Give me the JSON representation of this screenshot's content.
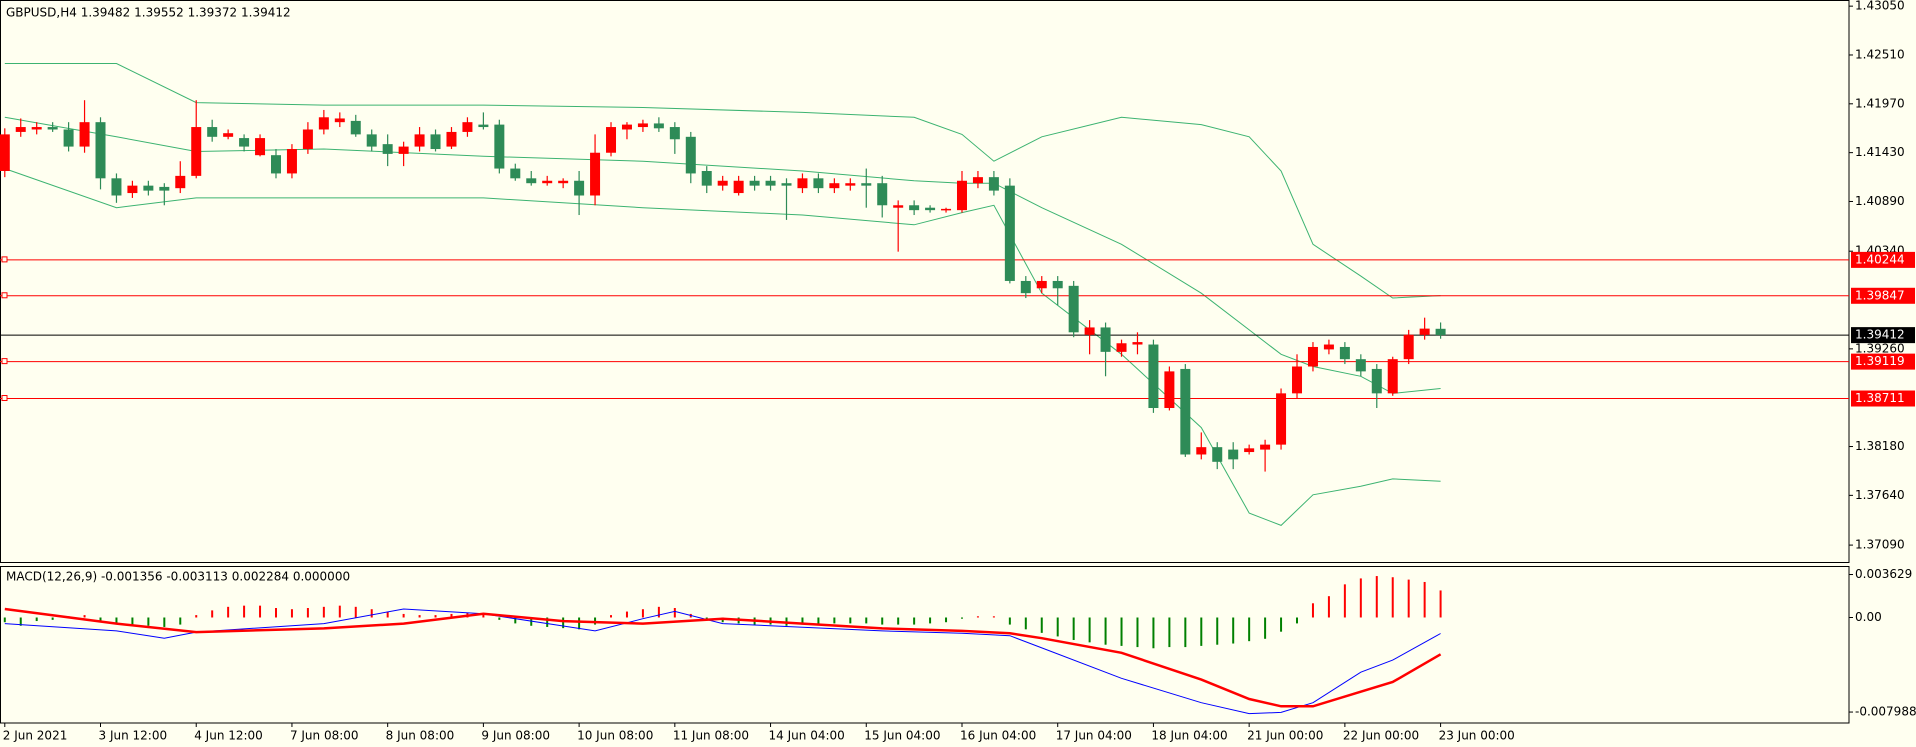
{
  "chart_data": [
    {
      "type": "candlestick",
      "title": "GBPUSD,H4  1.39482 1.39552 1.39372 1.39412",
      "up_color": "#ff0000",
      "down_color": "#2e8b57",
      "xlim": [
        -0.3,
        115.6
      ],
      "ylim": [
        1.36903,
        1.43118
      ],
      "yticks": [
        {
          "value": 1.4305,
          "label": "1.43050"
        },
        {
          "value": 1.4251,
          "label": "1.42510"
        },
        {
          "value": 1.4197,
          "label": "1.41970"
        },
        {
          "value": 1.4143,
          "label": "1.41430"
        },
        {
          "value": 1.4089,
          "label": "1.40890"
        },
        {
          "value": 1.4034,
          "label": "1.40340"
        },
        {
          "value": 1.3926,
          "label": "1.39260"
        },
        {
          "value": 1.3818,
          "label": "1.38180"
        },
        {
          "value": 1.3764,
          "label": "1.37640"
        },
        {
          "value": 1.3709,
          "label": "1.37090"
        }
      ],
      "xticks": [
        {
          "value": 0,
          "label": "2 Jun 2021"
        },
        {
          "value": 6,
          "label": "3 Jun 12:00"
        },
        {
          "value": 12,
          "label": "4 Jun 12:00"
        },
        {
          "value": 18,
          "label": "7 Jun 08:00"
        },
        {
          "value": 24,
          "label": "8 Jun 08:00"
        },
        {
          "value": 30,
          "label": "9 Jun 08:00"
        },
        {
          "value": 36,
          "label": "10 Jun 08:00"
        },
        {
          "value": 42,
          "label": "11 Jun 08:00"
        },
        {
          "value": 48,
          "label": "14 Jun 04:00"
        },
        {
          "value": 54,
          "label": "15 Jun 04:00"
        },
        {
          "value": 60,
          "label": "16 Jun 04:00"
        },
        {
          "value": 66,
          "label": "17 Jun 04:00"
        },
        {
          "value": 72,
          "label": "18 Jun 04:00"
        },
        {
          "value": 78,
          "label": "21 Jun 00:00"
        },
        {
          "value": 84,
          "label": "22 Jun 00:00"
        },
        {
          "value": 90,
          "label": "23 Jun 00:00"
        }
      ],
      "ohlc": [
        [
          1.41227,
          1.41699,
          1.41159,
          1.41632
        ],
        [
          1.41659,
          1.41808,
          1.41605,
          1.41713
        ],
        [
          1.41686,
          1.41767,
          1.41632,
          1.41713
        ],
        [
          1.41713,
          1.41767,
          1.41659,
          1.41686
        ],
        [
          1.41686,
          1.41767,
          1.41443,
          1.41497
        ],
        [
          1.41497,
          1.4201,
          1.41429,
          1.41767
        ],
        [
          1.41767,
          1.41821,
          1.41024,
          1.41146
        ],
        [
          1.41146,
          1.412,
          1.40875,
          1.40956
        ],
        [
          1.40983,
          1.41119,
          1.40929,
          1.41065
        ],
        [
          1.41065,
          1.41119,
          1.40956,
          1.4101
        ],
        [
          1.41051,
          1.41092,
          1.40848,
          1.4101
        ],
        [
          1.41037,
          1.41335,
          1.40983,
          1.41173
        ],
        [
          1.41173,
          1.4201,
          1.41146,
          1.41713
        ],
        [
          1.41713,
          1.41794,
          1.41551,
          1.41605
        ],
        [
          1.41605,
          1.41686,
          1.41578,
          1.41645
        ],
        [
          1.41591,
          1.41632,
          1.41443,
          1.41497
        ],
        [
          1.41402,
          1.41632,
          1.41389,
          1.41591
        ],
        [
          1.41402,
          1.4147,
          1.41146,
          1.412
        ],
        [
          1.412,
          1.41524,
          1.41146,
          1.4147
        ],
        [
          1.4147,
          1.41767,
          1.41416,
          1.41686
        ],
        [
          1.41686,
          1.41902,
          1.41632,
          1.41821
        ],
        [
          1.41767,
          1.41875,
          1.41713,
          1.41808
        ],
        [
          1.41781,
          1.41848,
          1.41605,
          1.41632
        ],
        [
          1.41632,
          1.41686,
          1.41443,
          1.41497
        ],
        [
          1.41524,
          1.41632,
          1.41281,
          1.41416
        ],
        [
          1.41416,
          1.41551,
          1.41281,
          1.41497
        ],
        [
          1.41497,
          1.41713,
          1.41443,
          1.41632
        ],
        [
          1.41632,
          1.41686,
          1.41443,
          1.4147
        ],
        [
          1.41497,
          1.41713,
          1.4147,
          1.41659
        ],
        [
          1.41659,
          1.41821,
          1.41605,
          1.41767
        ],
        [
          1.4174,
          1.41875,
          1.41686,
          1.41713
        ],
        [
          1.4174,
          1.41794,
          1.412,
          1.41254
        ],
        [
          1.41254,
          1.41308,
          1.41119,
          1.41146
        ],
        [
          1.41146,
          1.41227,
          1.41065,
          1.41092
        ],
        [
          1.41092,
          1.41173,
          1.41065,
          1.41119
        ],
        [
          1.41092,
          1.41146,
          1.41037,
          1.41119
        ],
        [
          1.41119,
          1.41227,
          1.4074,
          1.40956
        ],
        [
          1.40956,
          1.41632,
          1.40848,
          1.41429
        ],
        [
          1.41429,
          1.41767,
          1.41389,
          1.41713
        ],
        [
          1.41686,
          1.41767,
          1.41578,
          1.4174
        ],
        [
          1.41713,
          1.41794,
          1.41659,
          1.41753
        ],
        [
          1.41753,
          1.41821,
          1.41659,
          1.41699
        ],
        [
          1.41713,
          1.41767,
          1.41416,
          1.41578
        ],
        [
          1.41605,
          1.41659,
          1.41092,
          1.412
        ],
        [
          1.41227,
          1.41281,
          1.40983,
          1.41065
        ],
        [
          1.41065,
          1.41173,
          1.4101,
          1.41119
        ],
        [
          1.40983,
          1.41173,
          1.40956,
          1.41119
        ],
        [
          1.41119,
          1.41173,
          1.4101,
          1.41065
        ],
        [
          1.41119,
          1.41173,
          1.4101,
          1.41065
        ],
        [
          1.41092,
          1.41146,
          1.40686,
          1.41065
        ],
        [
          1.41037,
          1.412,
          1.40983,
          1.41146
        ],
        [
          1.41146,
          1.412,
          1.40983,
          1.41037
        ],
        [
          1.41037,
          1.41146,
          1.40983,
          1.41092
        ],
        [
          1.41065,
          1.41146,
          1.4101,
          1.41092
        ],
        [
          1.41092,
          1.41254,
          1.40821,
          1.41065
        ],
        [
          1.41092,
          1.41173,
          1.40713,
          1.40848
        ],
        [
          1.40821,
          1.40902,
          1.40335,
          1.40848
        ],
        [
          1.40848,
          1.40902,
          1.4074,
          1.40794
        ],
        [
          1.40821,
          1.40848,
          1.40767,
          1.40794
        ],
        [
          1.40794,
          1.40821,
          1.40767,
          1.40808
        ],
        [
          1.40794,
          1.41227,
          1.40767,
          1.41119
        ],
        [
          1.41092,
          1.41227,
          1.41037,
          1.41159
        ],
        [
          1.41159,
          1.41227,
          1.40956,
          1.4101
        ],
        [
          1.41065,
          1.41146,
          1.39984,
          1.40011
        ],
        [
          1.40011,
          1.40065,
          1.39822,
          1.39876
        ],
        [
          1.3993,
          1.40065,
          1.39876,
          1.40011
        ],
        [
          1.40011,
          1.40065,
          1.39743,
          1.3993
        ],
        [
          1.39957,
          1.40011,
          1.39389,
          1.39443
        ],
        [
          1.39416,
          1.39578,
          1.392,
          1.39497
        ],
        [
          1.39497,
          1.39551,
          1.38957,
          1.39227
        ],
        [
          1.39227,
          1.39362,
          1.39173,
          1.39322
        ],
        [
          1.39308,
          1.39443,
          1.392,
          1.39335
        ],
        [
          1.39308,
          1.39362,
          1.38552,
          1.38606
        ],
        [
          1.38606,
          1.39065,
          1.38579,
          1.39011
        ],
        [
          1.39038,
          1.39092,
          1.38065,
          1.38092
        ],
        [
          1.38092,
          1.38336,
          1.38038,
          1.38173
        ],
        [
          1.38173,
          1.38228,
          1.3793,
          1.38011
        ],
        [
          1.38146,
          1.38228,
          1.3793,
          1.38038
        ],
        [
          1.38119,
          1.38201,
          1.38092,
          1.3816
        ],
        [
          1.38146,
          1.38255,
          1.37903,
          1.38201
        ],
        [
          1.38201,
          1.38822,
          1.38146,
          1.38768
        ],
        [
          1.38768,
          1.392,
          1.38714,
          1.39065
        ],
        [
          1.39065,
          1.39335,
          1.39011,
          1.39281
        ],
        [
          1.39254,
          1.39362,
          1.392,
          1.39308
        ],
        [
          1.39281,
          1.39335,
          1.39092,
          1.39146
        ],
        [
          1.39146,
          1.392,
          1.38957,
          1.39011
        ],
        [
          1.39038,
          1.39092,
          1.38606,
          1.38768
        ],
        [
          1.38768,
          1.39173,
          1.38741,
          1.39146
        ],
        [
          1.39146,
          1.3947,
          1.39092,
          1.39416
        ],
        [
          1.39416,
          1.39605,
          1.39362,
          1.39484
        ],
        [
          1.39482,
          1.39552,
          1.39372,
          1.39412
        ]
      ],
      "overlays": [
        {
          "color": "#3cb371",
          "x": [
            0,
            7,
            12,
            20,
            30,
            40,
            50,
            57,
            60,
            62,
            65,
            70,
            75,
            78,
            80,
            82,
            85,
            87,
            90
          ],
          "values": [
            1.42416,
            1.42416,
            1.41983,
            1.41956,
            1.41956,
            1.41929,
            1.41875,
            1.41821,
            1.41632,
            1.41335,
            1.41605,
            1.41821,
            1.4174,
            1.41605,
            1.41227,
            1.40416,
            1.40065,
            1.39822,
            1.39849
          ]
        },
        {
          "color": "#3cb371",
          "x": [
            0,
            7,
            12,
            20,
            30,
            40,
            50,
            57,
            60,
            62,
            65,
            70,
            75,
            78,
            80,
            82,
            85,
            87,
            90
          ],
          "values": [
            1.41821,
            1.41605,
            1.41443,
            1.4147,
            1.41389,
            1.41335,
            1.41227,
            1.41119,
            1.41092,
            1.41092,
            1.40821,
            1.40416,
            1.39876,
            1.3947,
            1.392,
            1.39065,
            1.38957,
            1.38768,
            1.38822
          ]
        },
        {
          "color": "#3cb371",
          "x": [
            0,
            7,
            12,
            20,
            30,
            40,
            50,
            57,
            60,
            62,
            65,
            70,
            75,
            78,
            80,
            82,
            85,
            87,
            90
          ],
          "values": [
            1.41254,
            1.40821,
            1.40929,
            1.40929,
            1.40929,
            1.40821,
            1.4074,
            1.40632,
            1.40767,
            1.40848,
            1.39876,
            1.392,
            1.38389,
            1.37444,
            1.37308,
            1.37646,
            1.37741,
            1.37822,
            1.37795
          ]
        }
      ],
      "levels": [
        1.40244,
        1.39847,
        1.39119,
        1.38711
      ],
      "level_color": "#ff0000",
      "last": 1.39412
    },
    {
      "type": "macd",
      "title": "MACD(12,26,9) -0.001356 -0.003113 0.002284 0.000000",
      "xlim": [
        -0.3,
        115.6
      ],
      "ylim": [
        -0.008913,
        0.004349
      ],
      "yticks": [
        0.003629,
        {
          "value": 0,
          "label": "0.00"
        },
        -0.007988
      ],
      "histogram": {
        "up_color": "#ff0000",
        "down_color": "#008000",
        "values": [
          -0.0004,
          -0.0007,
          -0.0003,
          -0.0002,
          0.0001,
          0.0002,
          -0.0003,
          -0.0005,
          -0.0006,
          -0.0007,
          -0.0008,
          -0.0006,
          0.0002,
          0.0006,
          0.0009,
          0.001,
          0.001,
          0.0008,
          0.0007,
          0.0008,
          0.0009,
          0.001,
          0.0009,
          0.0007,
          0.0005,
          0.0003,
          0.0002,
          0.0002,
          0.0003,
          0.0004,
          0.0003,
          -0.0002,
          -0.0005,
          -0.0007,
          -0.0008,
          -0.0009,
          -0.001,
          -0.0006,
          0.0002,
          0.0005,
          0.0007,
          0.0009,
          0.0008,
          0.0003,
          -0.0002,
          -0.0004,
          -0.0005,
          -0.0006,
          -0.0006,
          -0.0007,
          -0.0006,
          -0.0006,
          -0.0005,
          -0.0005,
          -0.0005,
          -0.0006,
          -0.0006,
          -0.0006,
          -0.0005,
          -0.0004,
          -0.0001,
          0.0001,
          0.0001,
          -0.0006,
          -0.001,
          -0.0013,
          -0.0016,
          -0.0019,
          -0.0021,
          -0.0023,
          -0.0024,
          -0.0025,
          -0.0026,
          -0.0025,
          -0.0025,
          -0.0024,
          -0.0023,
          -0.0022,
          -0.002,
          -0.0018,
          -0.0012,
          -0.0005,
          0.0012,
          0.0018,
          0.0028,
          0.0033,
          0.0035,
          0.0034,
          0.0032,
          0.003,
          0.002284
        ]
      },
      "series": [
        {
          "color": "#0000ff",
          "x": [
            0,
            7,
            10,
            12,
            20,
            25,
            30,
            35,
            37,
            40,
            42,
            45,
            50,
            55,
            60,
            63,
            65,
            70,
            75,
            78,
            80,
            82,
            85,
            87,
            90
          ],
          "values": [
            -0.000514,
            -0.001131,
            -0.001748,
            -0.001234,
            -0.000514,
            0.00072,
            0.000308,
            -0.00072,
            -0.001131,
            -0.000103,
            0.000514,
            -0.000514,
            -0.000822,
            -0.001131,
            -0.001336,
            -0.001542,
            -0.00257,
            -0.00514,
            -0.007196,
            -0.008121,
            -0.008018,
            -0.007196,
            -0.004626,
            -0.003598,
            -0.001356
          ]
        },
        {
          "color": "#ff0000",
          "x": [
            0,
            7,
            12,
            20,
            25,
            30,
            35,
            40,
            45,
            50,
            55,
            60,
            63,
            65,
            70,
            75,
            78,
            80,
            82,
            85,
            87,
            90
          ],
          "values": [
            0.00072,
            -0.000514,
            -0.001234,
            -0.000925,
            -0.000514,
            0.000308,
            -0.000308,
            -0.000514,
            -0.000103,
            -0.000514,
            -0.000925,
            -0.001131,
            -0.001336,
            -0.001748,
            -0.002981,
            -0.005243,
            -0.006888,
            -0.007504,
            -0.007504,
            -0.006271,
            -0.005448,
            -0.003113
          ]
        }
      ]
    }
  ]
}
